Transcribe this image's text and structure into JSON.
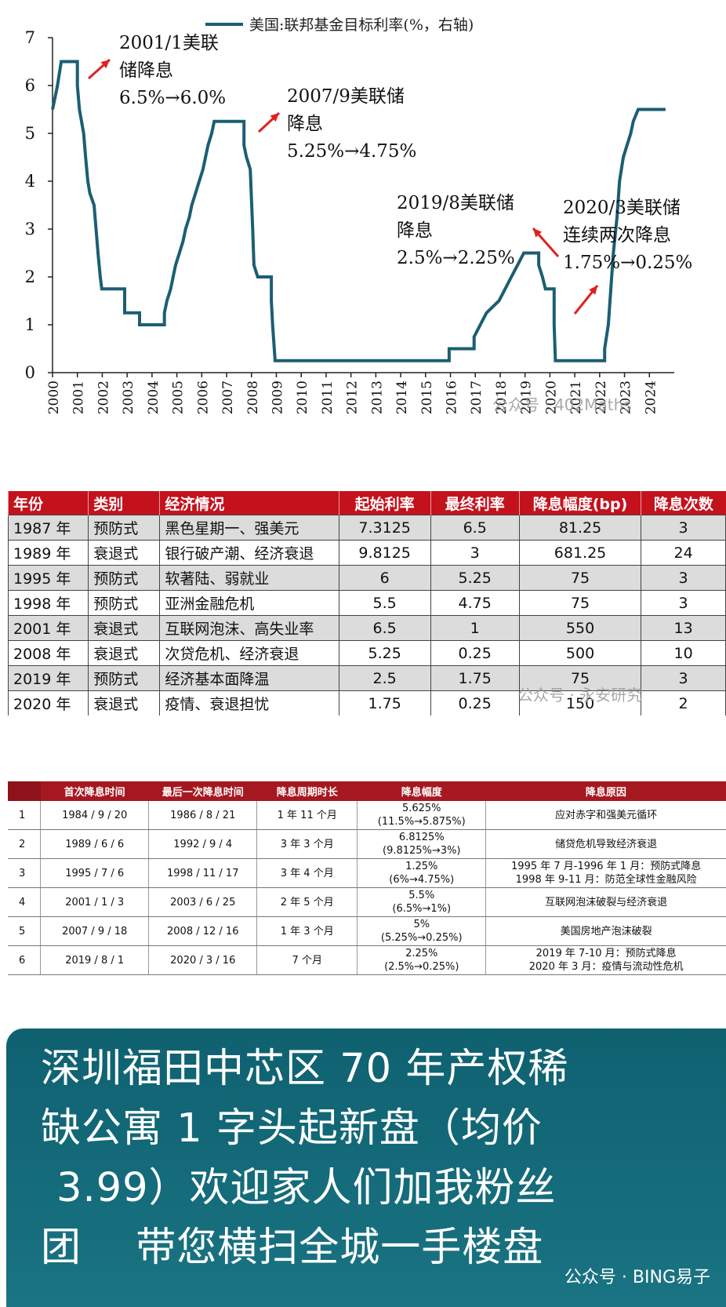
{
  "chart_data": {
    "type": "line",
    "legend": "美国:联邦基金目标利率(%，右轴)",
    "legend_color": "#1b5e73",
    "arrow_color": "#e02020",
    "yticks": [
      "0",
      "1",
      "2",
      "3",
      "4",
      "5",
      "6",
      "7"
    ],
    "ylim": [
      0,
      7
    ],
    "xlim": [
      2000,
      2025
    ],
    "xticks": [
      "2000",
      "2001",
      "2002",
      "2003",
      "2004",
      "2005",
      "2006",
      "2007",
      "2008",
      "2009",
      "2010",
      "2011",
      "2012",
      "2013",
      "2014",
      "2015",
      "2016",
      "2017",
      "2018",
      "2019",
      "2020",
      "2021",
      "2022",
      "2023",
      "2024"
    ],
    "series": [
      {
        "name": "美国:联邦基金目标利率(%，右轴)",
        "points": [
          [
            2000.0,
            5.5
          ],
          [
            2000.1,
            5.75
          ],
          [
            2000.2,
            6.0
          ],
          [
            2000.35,
            6.5
          ],
          [
            2001.0,
            6.5
          ],
          [
            2001.0,
            6.0
          ],
          [
            2001.08,
            5.5
          ],
          [
            2001.25,
            5.0
          ],
          [
            2001.33,
            4.5
          ],
          [
            2001.42,
            4.0
          ],
          [
            2001.5,
            3.75
          ],
          [
            2001.67,
            3.5
          ],
          [
            2001.75,
            3.0
          ],
          [
            2001.83,
            2.5
          ],
          [
            2001.92,
            2.0
          ],
          [
            2001.98,
            1.75
          ],
          [
            2002.9,
            1.75
          ],
          [
            2002.9,
            1.25
          ],
          [
            2003.5,
            1.25
          ],
          [
            2003.5,
            1.0
          ],
          [
            2004.5,
            1.0
          ],
          [
            2004.5,
            1.25
          ],
          [
            2004.6,
            1.5
          ],
          [
            2004.75,
            1.75
          ],
          [
            2004.85,
            2.0
          ],
          [
            2004.95,
            2.25
          ],
          [
            2005.1,
            2.5
          ],
          [
            2005.25,
            2.75
          ],
          [
            2005.35,
            3.0
          ],
          [
            2005.5,
            3.25
          ],
          [
            2005.6,
            3.5
          ],
          [
            2005.75,
            3.75
          ],
          [
            2005.9,
            4.0
          ],
          [
            2006.05,
            4.25
          ],
          [
            2006.15,
            4.5
          ],
          [
            2006.25,
            4.75
          ],
          [
            2006.4,
            5.0
          ],
          [
            2006.5,
            5.25
          ],
          [
            2007.7,
            5.25
          ],
          [
            2007.7,
            4.75
          ],
          [
            2007.8,
            4.5
          ],
          [
            2007.95,
            4.25
          ],
          [
            2008.05,
            3.0
          ],
          [
            2008.1,
            2.25
          ],
          [
            2008.25,
            2.0
          ],
          [
            2008.8,
            2.0
          ],
          [
            2008.8,
            1.5
          ],
          [
            2008.85,
            1.0
          ],
          [
            2008.95,
            0.25
          ],
          [
            2015.95,
            0.25
          ],
          [
            2015.95,
            0.5
          ],
          [
            2016.95,
            0.5
          ],
          [
            2016.95,
            0.75
          ],
          [
            2017.2,
            1.0
          ],
          [
            2017.45,
            1.25
          ],
          [
            2017.95,
            1.5
          ],
          [
            2018.2,
            1.75
          ],
          [
            2018.45,
            2.0
          ],
          [
            2018.7,
            2.25
          ],
          [
            2018.95,
            2.5
          ],
          [
            2019.55,
            2.5
          ],
          [
            2019.55,
            2.25
          ],
          [
            2019.7,
            2.0
          ],
          [
            2019.82,
            1.75
          ],
          [
            2020.17,
            1.75
          ],
          [
            2020.17,
            1.0
          ],
          [
            2020.22,
            0.25
          ],
          [
            2022.2,
            0.25
          ],
          [
            2022.2,
            0.5
          ],
          [
            2022.35,
            1.0
          ],
          [
            2022.45,
            1.75
          ],
          [
            2022.55,
            2.5
          ],
          [
            2022.7,
            3.25
          ],
          [
            2022.8,
            4.0
          ],
          [
            2022.95,
            4.5
          ],
          [
            2023.1,
            4.75
          ],
          [
            2023.25,
            5.0
          ],
          [
            2023.35,
            5.25
          ],
          [
            2023.55,
            5.5
          ],
          [
            2024.65,
            5.5
          ]
        ]
      }
    ],
    "annotations": [
      {
        "lines": [
          "2001/1美联",
          "储降息",
          "6.5%→6.0%"
        ]
      },
      {
        "lines": [
          "2007/9美联储",
          "降息",
          "5.25%→4.75%"
        ]
      },
      {
        "lines": [
          "2019/8美联储",
          "降息",
          "2.5%→2.25%"
        ]
      },
      {
        "lines": [
          "2020/3美联储",
          "连续两次降息",
          "1.75%→0.25%"
        ]
      }
    ]
  },
  "watermarks": {
    "chart": "公众号 · 402Maths",
    "table1": "公众号 · 永安研究",
    "banner": "公众号 · BING易子"
  },
  "table1": {
    "header_bg": "#c4121c",
    "headers": [
      "年份",
      "类别",
      "经济情况",
      "起始利率",
      "最终利率",
      "降息幅度(bp)",
      "降息次数"
    ],
    "rows": [
      [
        "1987 年",
        "预防式",
        "黑色星期一、强美元",
        "7.3125",
        "6.5",
        "81.25",
        "3"
      ],
      [
        "1989 年",
        "衰退式",
        "银行破产潮、经济衰退",
        "9.8125",
        "3",
        "681.25",
        "24"
      ],
      [
        "1995 年",
        "预防式",
        "软著陆、弱就业",
        "6",
        "5.25",
        "75",
        "3"
      ],
      [
        "1998 年",
        "预防式",
        "亚洲金融危机",
        "5.5",
        "4.75",
        "75",
        "3"
      ],
      [
        "2001 年",
        "衰退式",
        "互联网泡沫、高失业率",
        "6.5",
        "1",
        "550",
        "13"
      ],
      [
        "2008 年",
        "衰退式",
        "次贷危机、经济衰退",
        "5.25",
        "0.25",
        "500",
        "10"
      ],
      [
        "2019 年",
        "预防式",
        "经济基本面降温",
        "2.5",
        "1.75",
        "75",
        "3"
      ],
      [
        "2020 年",
        "衰退式",
        "疫情、衰退担忧",
        "1.75",
        "0.25",
        "150",
        "2"
      ]
    ]
  },
  "table2": {
    "headers": [
      "",
      "首次降息时间",
      "最后一次降息时间",
      "降息周期时长",
      "降息幅度",
      "降息原因"
    ],
    "rows": [
      {
        "no": "1",
        "first": "1984 / 9 / 20",
        "last": "1986 / 8 / 21",
        "dur": "1 年 11 个月",
        "amt1": "5.625%",
        "amt2": "(11.5%→5.875%)",
        "reason1": "应对赤字和强美元循环",
        "reason2": ""
      },
      {
        "no": "2",
        "first": "1989 / 6 / 6",
        "last": "1992 / 9 / 4",
        "dur": "3 年 3 个月",
        "amt1": "6.8125%",
        "amt2": "(9.8125%→3%)",
        "reason1": "储贷危机导致经济衰退",
        "reason2": ""
      },
      {
        "no": "3",
        "first": "1995 / 7 / 6",
        "last": "1998 / 11 / 17",
        "dur": "3 年 4 个月",
        "amt1": "1.25%",
        "amt2": "(6%→4.75%)",
        "reason1": "1995 年 7 月-1996 年 1 月：预防式降息",
        "reason2": "1998 年 9-11 月：防范全球性金融风险"
      },
      {
        "no": "4",
        "first": "2001 / 1 / 3",
        "last": "2003 / 6 / 25",
        "dur": "2 年 5 个月",
        "amt1": "5.5%",
        "amt2": "(6.5%→1%)",
        "reason1": "互联网泡沫破裂与经济衰退",
        "reason2": ""
      },
      {
        "no": "5",
        "first": "2007 / 9 / 18",
        "last": "2008 / 12 / 16",
        "dur": "1 年 3 个月",
        "amt1": "5%",
        "amt2": "(5.25%→0.25%)",
        "reason1": "美国房地产泡沫破裂",
        "reason2": ""
      },
      {
        "no": "6",
        "first": "2019 / 8 / 1",
        "last": "2020 / 3 / 16",
        "dur": "7 个月",
        "amt1": "2.25%",
        "amt2": "(2.5%→0.25%)",
        "reason1": "2019 年 7-10 月：预防式降息",
        "reason2": "2020 年 3 月：疫情与流动性危机"
      }
    ]
  },
  "banner": {
    "lines": [
      "深圳福田中芯区 70 年产权稀",
      "缺公寓 1 字头起新盘（均价",
      "3.99）欢迎家人们加我粉丝",
      "团　 带您横扫全城一手楼盘"
    ]
  }
}
